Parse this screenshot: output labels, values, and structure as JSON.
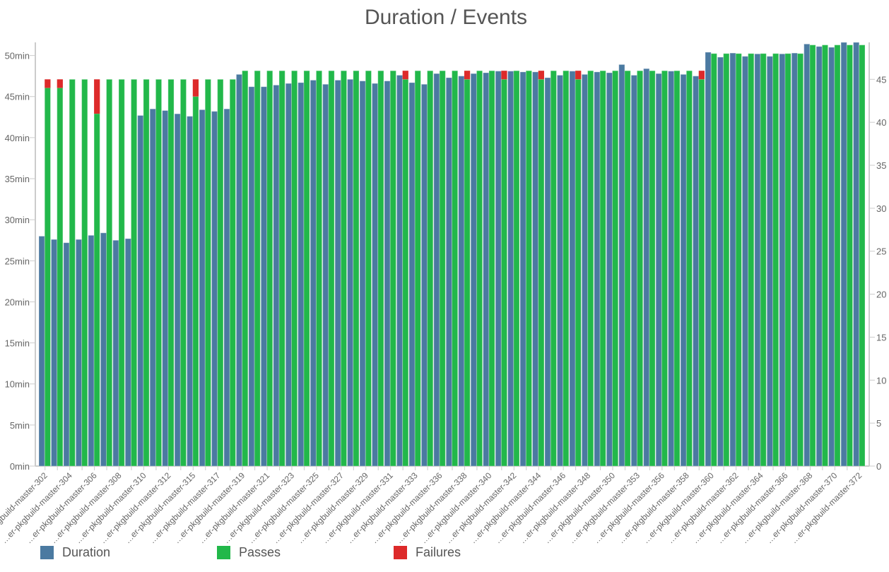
{
  "chart_data": {
    "type": "bar",
    "title": "Duration / Events",
    "categories": [
      "…er-pkgbuild-master-302",
      "",
      "…er-pkgbuild-master-304",
      "",
      "…er-pkgbuild-master-306",
      "",
      "…er-pkgbuild-master-308",
      "",
      "…er-pkgbuild-master-310",
      "",
      "…er-pkgbuild-master-312",
      "",
      "…er-pkgbuild-master-315",
      "",
      "…er-pkgbuild-master-317",
      "",
      "…er-pkgbuild-master-319",
      "",
      "…er-pkgbuild-master-321",
      "",
      "…er-pkgbuild-master-323",
      "",
      "…er-pkgbuild-master-325",
      "",
      "…er-pkgbuild-master-327",
      "",
      "…er-pkgbuild-master-329",
      "",
      "…er-pkgbuild-master-331",
      "",
      "…er-pkgbuild-master-333",
      "",
      "…er-pkgbuild-master-336",
      "",
      "…er-pkgbuild-master-338",
      "",
      "…er-pkgbuild-master-340",
      "",
      "…er-pkgbuild-master-342",
      "",
      "…er-pkgbuild-master-344",
      "",
      "…er-pkgbuild-master-346",
      "",
      "…er-pkgbuild-master-348",
      "",
      "…er-pkgbuild-master-350",
      "",
      "…er-pkgbuild-master-353",
      "",
      "…er-pkgbuild-master-356",
      "",
      "…er-pkgbuild-master-358",
      "",
      "…er-pkgbuild-master-360",
      "",
      "…er-pkgbuild-master-362",
      "",
      "…er-pkgbuild-master-364",
      "",
      "…er-pkgbuild-master-366",
      "",
      "…er-pkgbuild-master-368",
      "",
      "…er-pkgbuild-master-370",
      "",
      "…er-pkgbuild-master-372"
    ],
    "series": [
      {
        "name": "Duration",
        "axis": "left",
        "unit": "min",
        "color": "#4b7aa1",
        "values": [
          28.0,
          27.6,
          27.2,
          27.6,
          28.1,
          28.4,
          27.5,
          27.7,
          42.7,
          43.5,
          43.3,
          42.9,
          42.6,
          43.4,
          43.2,
          43.5,
          47.7,
          46.2,
          46.2,
          46.4,
          46.6,
          46.7,
          47.0,
          46.5,
          47.0,
          47.1,
          46.9,
          46.6,
          46.9,
          47.6,
          46.7,
          46.5,
          47.8,
          47.3,
          47.5,
          47.8,
          47.9,
          48.1,
          48.1,
          48.0,
          48.0,
          47.3,
          47.6,
          48.1,
          47.7,
          48.0,
          47.9,
          48.9,
          47.6,
          48.4,
          47.8,
          48.1,
          47.7,
          47.5,
          50.4,
          49.8,
          50.3,
          49.9,
          50.2,
          49.9,
          50.2,
          50.3,
          51.4,
          51.1,
          51.0,
          51.6,
          51.6
        ]
      },
      {
        "name": "Passes",
        "axis": "right",
        "stack": "events",
        "color": "#22b84a",
        "values": [
          44,
          44,
          45,
          45,
          41,
          45,
          45,
          45,
          45,
          45,
          45,
          45,
          43,
          45,
          45,
          45,
          46,
          46,
          46,
          46,
          46,
          46,
          46,
          46,
          46,
          46,
          46,
          46,
          46,
          45,
          46,
          46,
          46,
          46,
          45,
          46,
          46,
          45,
          46,
          46,
          45,
          46,
          46,
          45,
          46,
          46,
          46,
          46,
          46,
          46,
          46,
          46,
          46,
          45,
          48,
          48,
          48,
          48,
          48,
          48,
          48,
          48,
          49,
          49,
          49,
          49,
          49
        ]
      },
      {
        "name": "Failures",
        "axis": "right",
        "stack": "events",
        "color": "#dd2a2a",
        "values": [
          1,
          1,
          0,
          0,
          4,
          0,
          0,
          0,
          0,
          0,
          0,
          0,
          2,
          0,
          0,
          0,
          0,
          0,
          0,
          0,
          0,
          0,
          0,
          0,
          0,
          0,
          0,
          0,
          0,
          1,
          0,
          0,
          0,
          0,
          1,
          0,
          0,
          1,
          0,
          0,
          1,
          0,
          0,
          1,
          0,
          0,
          0,
          0,
          0,
          0,
          0,
          0,
          0,
          1,
          0,
          0,
          0,
          0,
          0,
          0,
          0,
          0,
          0,
          0,
          0,
          0,
          0
        ]
      }
    ],
    "y_left": {
      "ticks": [
        "0min",
        "5min",
        "10min",
        "15min",
        "20min",
        "25min",
        "30min",
        "35min",
        "40min",
        "45min",
        "50min"
      ],
      "range": [
        0,
        51.6
      ]
    },
    "y_right": {
      "ticks": [
        "0",
        "5",
        "10",
        "15",
        "20",
        "25",
        "30",
        "35",
        "40",
        "45"
      ],
      "range": [
        0,
        49.3
      ]
    },
    "grid": false,
    "legend": {
      "placement": "bottom-left",
      "items": [
        "Duration",
        "Passes",
        "Failures"
      ]
    }
  }
}
